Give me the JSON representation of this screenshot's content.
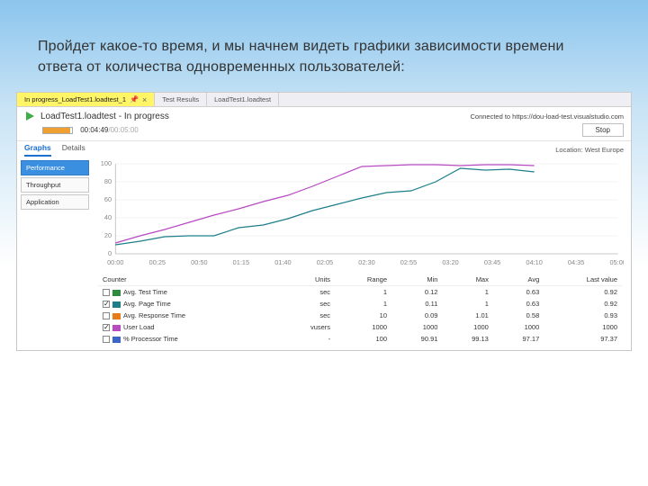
{
  "slide": {
    "text": "Пройдет какое-то время, и мы начнем видеть графики зависимости времени ответа от количества одновременных пользователей:"
  },
  "tabs": [
    {
      "label": "In progress_LoadTest1.loadtest_1",
      "active": true
    },
    {
      "label": "Test Results",
      "active": false
    },
    {
      "label": "LoadTest1.loadtest",
      "active": false
    }
  ],
  "header": {
    "title": "LoadTest1.loadtest - In progress",
    "connected": "Connected to https://dou-load-test.visualstudio.com",
    "elapsed": "00:04:49",
    "total": "/00:05:00",
    "progress_pct": 95,
    "stop_label": "Stop"
  },
  "subnav": {
    "graphs": "Graphs",
    "details": "Details",
    "location": "Location: West Europe"
  },
  "sidebar": {
    "performance": "Performance",
    "throughput": "Throughput",
    "application": "Application"
  },
  "chart": {
    "type": "line",
    "background_color": "#ffffff",
    "grid_color": "#e8e8e8",
    "axis_color": "#bbbbbb",
    "label_color": "#888888",
    "label_fontsize": 7,
    "ylim": [
      0,
      100
    ],
    "ytick_step": 20,
    "x_labels": [
      "00:00",
      "00:25",
      "00:50",
      "01:15",
      "01:40",
      "02:05",
      "02:30",
      "02:55",
      "03:20",
      "03:45",
      "04:10",
      "04:35",
      "05:00"
    ],
    "series": [
      {
        "name": "User Load",
        "color": "#b84ac2",
        "width": 1.2,
        "points": [
          12,
          20,
          27,
          35,
          43,
          50,
          58,
          65,
          75,
          86,
          97,
          98,
          99,
          99,
          98,
          99,
          99,
          98
        ]
      },
      {
        "name": "Avg. Page Time",
        "color": "#1e7f8a",
        "width": 1.2,
        "points": [
          10,
          14,
          19,
          20,
          20,
          29,
          32,
          39,
          48,
          55,
          62,
          68,
          70,
          80,
          95,
          93,
          94,
          91
        ]
      }
    ]
  },
  "legend": {
    "headers": [
      "Counter",
      "Units",
      "Range",
      "Min",
      "Max",
      "Avg",
      "Last value"
    ],
    "rows": [
      {
        "checked": false,
        "color": "#2e8b3d",
        "name": "Avg. Test Time",
        "units": "sec",
        "range": "1",
        "min": "0.12",
        "max": "1",
        "avg": "0.63",
        "last": "0.92"
      },
      {
        "checked": true,
        "color": "#1e7f8a",
        "name": "Avg. Page Time",
        "units": "sec",
        "range": "1",
        "min": "0.11",
        "max": "1",
        "avg": "0.63",
        "last": "0.92"
      },
      {
        "checked": false,
        "color": "#e77b1a",
        "name": "Avg. Response Time",
        "units": "sec",
        "range": "10",
        "min": "0.09",
        "max": "1.01",
        "avg": "0.58",
        "last": "0.93"
      },
      {
        "checked": true,
        "color": "#b84ac2",
        "name": "User Load",
        "units": "vusers",
        "range": "1000",
        "min": "1000",
        "max": "1000",
        "avg": "1000",
        "last": "1000"
      },
      {
        "checked": false,
        "color": "#3a66c9",
        "name": "% Processor Time",
        "units": "-",
        "range": "100",
        "min": "90.91",
        "max": "99.13",
        "avg": "97.17",
        "last": "97.37"
      }
    ]
  }
}
